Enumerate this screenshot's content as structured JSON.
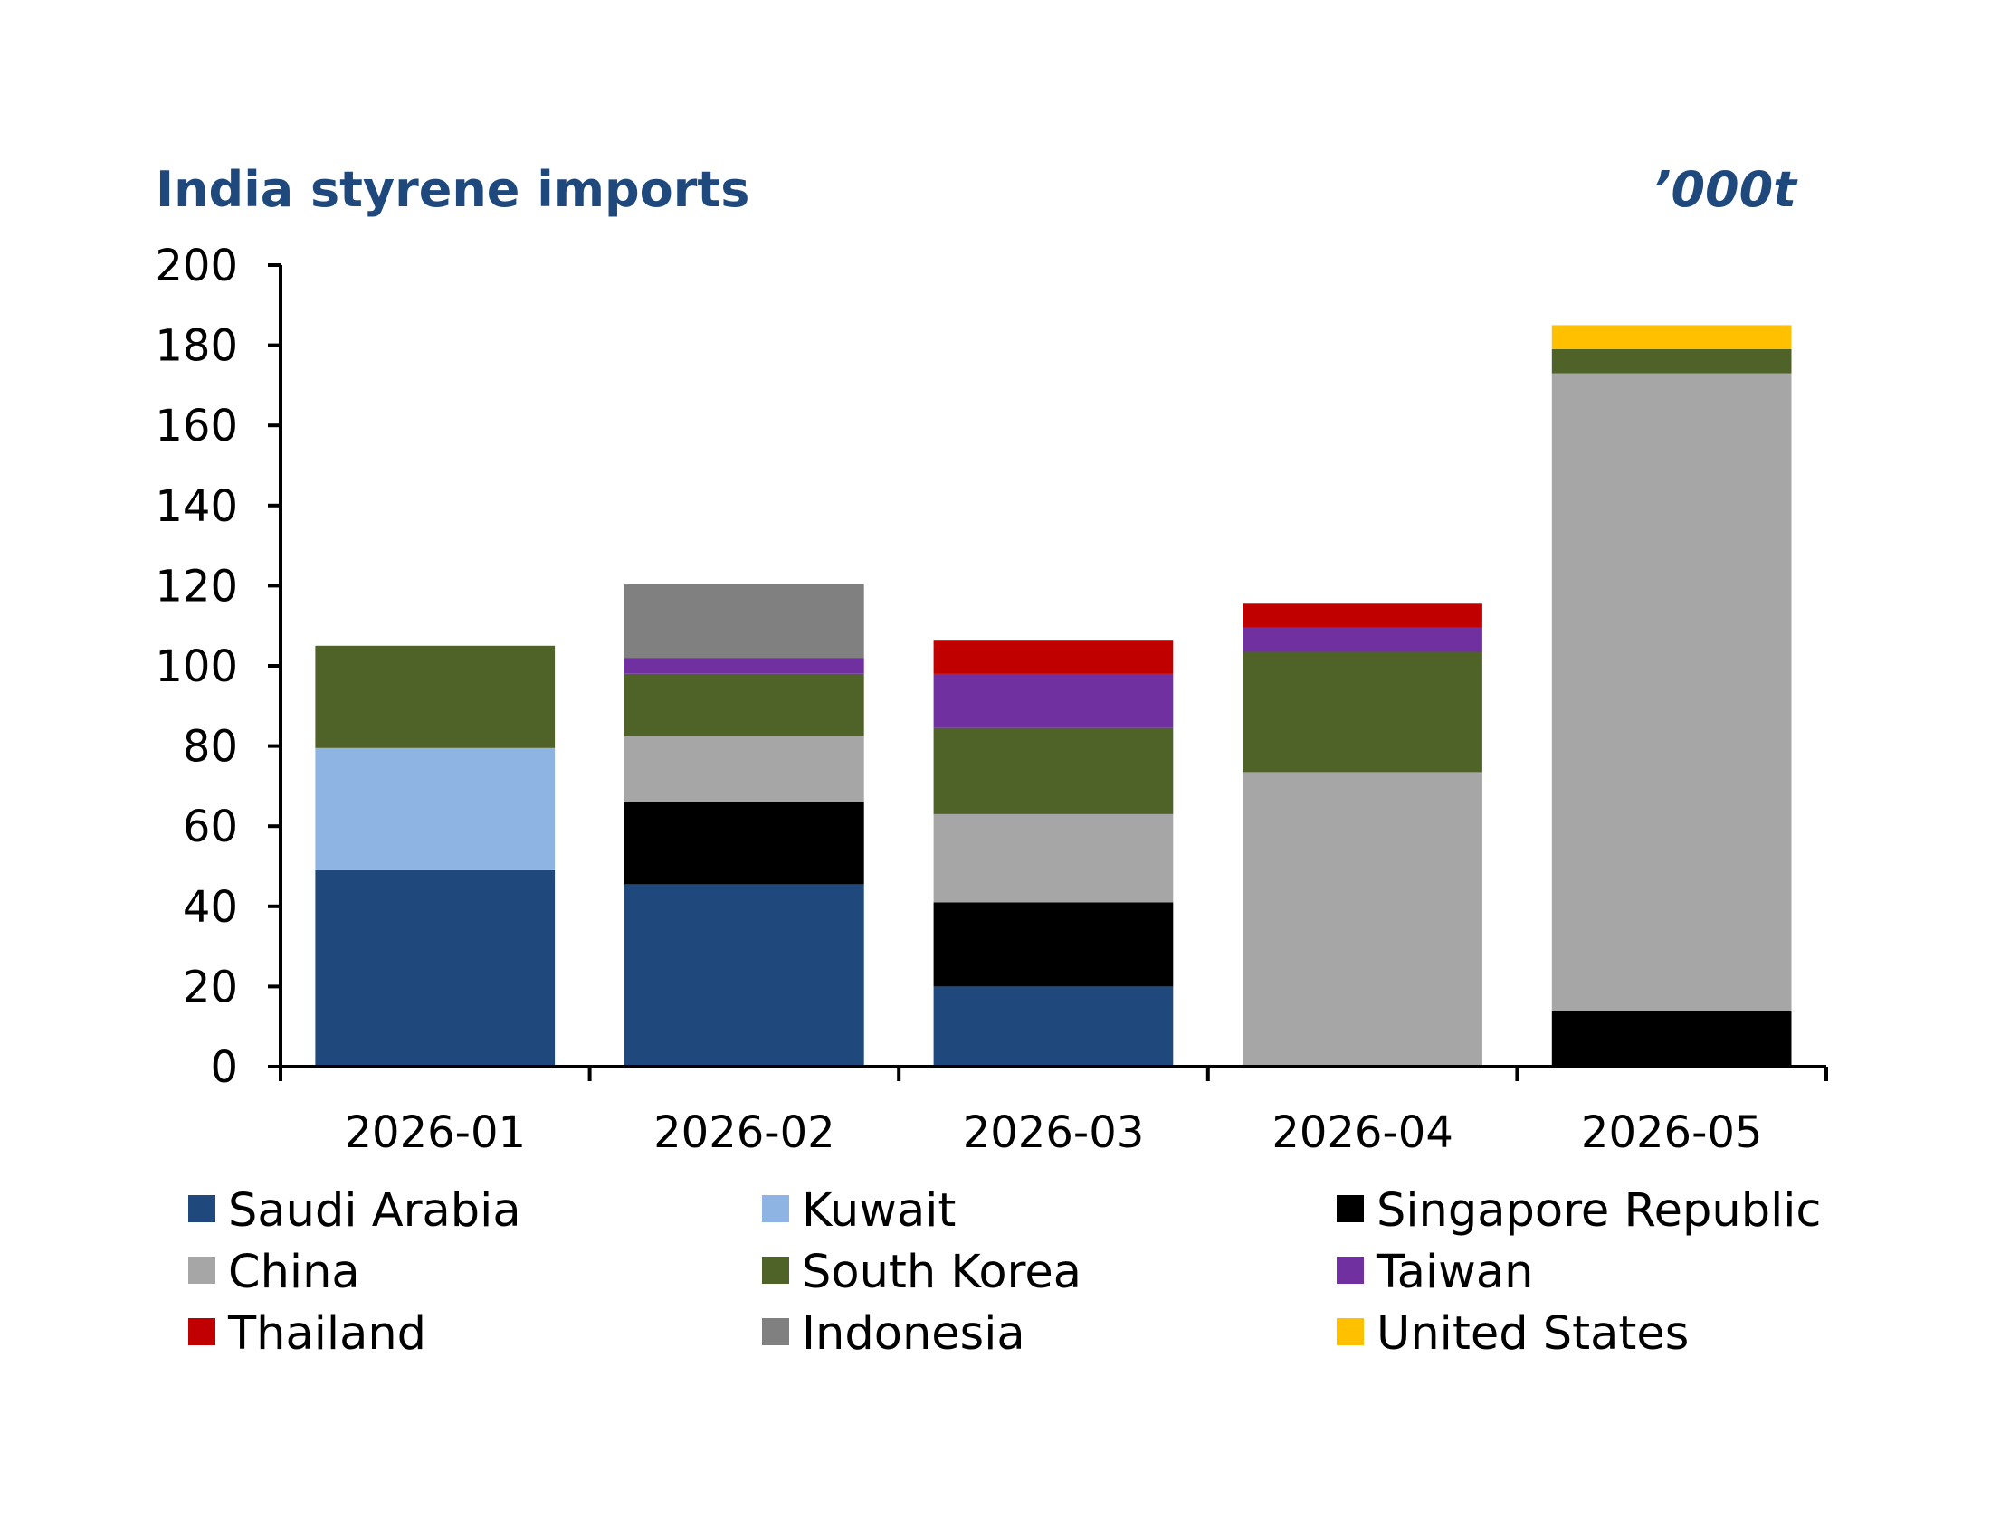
{
  "chart_data": {
    "type": "bar",
    "stacked": true,
    "title": "India styrene imports",
    "unit": "’000t",
    "ylim": [
      0,
      200
    ],
    "yticks": [
      0,
      20,
      40,
      60,
      80,
      100,
      120,
      140,
      160,
      180,
      200
    ],
    "categories": [
      "2026-01",
      "2026-02",
      "2026-03",
      "2026-04",
      "2026-05"
    ],
    "series": [
      {
        "name": "Saudi Arabia",
        "color": "#1F497D",
        "values": [
          49,
          45.5,
          20,
          0,
          0
        ]
      },
      {
        "name": "Kuwait",
        "color": "#8DB4E2",
        "values": [
          30.5,
          0,
          0,
          0,
          0
        ]
      },
      {
        "name": "Singapore Republic",
        "color": "#000000",
        "values": [
          0,
          20.5,
          21,
          0,
          14
        ]
      },
      {
        "name": "China",
        "color": "#A6A6A6",
        "values": [
          0,
          16.5,
          22,
          73.5,
          159
        ]
      },
      {
        "name": "South Korea",
        "color": "#4F6228",
        "values": [
          25.5,
          15.5,
          21.5,
          30,
          6
        ]
      },
      {
        "name": "Taiwan",
        "color": "#7030A0",
        "values": [
          0,
          4,
          13.5,
          6,
          0
        ]
      },
      {
        "name": "Thailand",
        "color": "#C00000",
        "values": [
          0,
          0,
          8.5,
          6,
          0
        ]
      },
      {
        "name": "Indonesia",
        "color": "#808080",
        "values": [
          0,
          18.5,
          0,
          0,
          0
        ]
      },
      {
        "name": "United States",
        "color": "#FFC000",
        "values": [
          0,
          0,
          0,
          0,
          6
        ]
      }
    ],
    "grid": false,
    "legend_position": "bottom"
  }
}
